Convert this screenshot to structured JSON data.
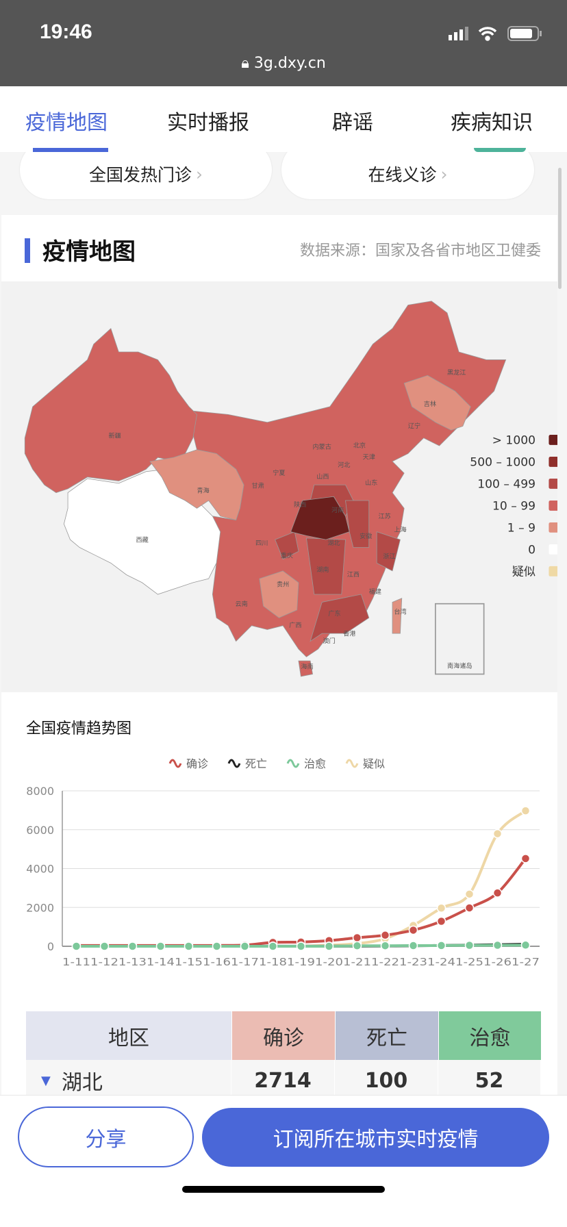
{
  "status": {
    "time": "19:46",
    "url": "3g.dxy.cn",
    "icons": [
      "signal-icon",
      "wifi-icon",
      "battery-icon",
      "lock-icon"
    ]
  },
  "tabs": [
    {
      "label": "疫情地图",
      "active": true
    },
    {
      "label": "实时播报"
    },
    {
      "label": "辟谣"
    },
    {
      "label": "疾病知识"
    }
  ],
  "quick": [
    {
      "label": "全国发热门诊",
      "chevron": "›"
    },
    {
      "label": "在线义诊",
      "chevron": "›"
    }
  ],
  "map_card": {
    "title": "疫情地图",
    "source": "数据来源：国家及各省市地区卫健委"
  },
  "map": {
    "legend": [
      {
        "label": "> 1000",
        "color": "#6b1f1d"
      },
      {
        "label": "500 – 1000",
        "color": "#8f2f2b"
      },
      {
        "label": "100 – 499",
        "color": "#b34a47"
      },
      {
        "label": "10 – 99",
        "color": "#d0635f"
      },
      {
        "label": "1 – 9",
        "color": "#e0907f"
      },
      {
        "label": "0",
        "color": "#ffffff"
      },
      {
        "label": "疑似",
        "color": "#efd9a5"
      }
    ],
    "provinces": [
      "新疆",
      "西藏",
      "青海",
      "甘肃",
      "内蒙古",
      "黑龙江",
      "吉林",
      "辽宁",
      "北京",
      "天津",
      "河北",
      "宁夏",
      "山西",
      "山东",
      "陕西",
      "河南",
      "江苏",
      "上海",
      "湖北",
      "安徽",
      "四川",
      "重庆",
      "浙江",
      "湖南",
      "江西",
      "贵州",
      "福建",
      "云南",
      "广东",
      "台湾",
      "广西",
      "香港",
      "澳门",
      "海南"
    ],
    "inset": "南海诸岛"
  },
  "chart_data": {
    "type": "line",
    "title": "全国疫情趋势图",
    "x": [
      "1-11",
      "1-12",
      "1-13",
      "1-14",
      "1-15",
      "1-16",
      "1-17",
      "1-18",
      "1-19",
      "1-20",
      "1-21",
      "1-22",
      "1-23",
      "1-24",
      "1-25",
      "1-26",
      "1-27"
    ],
    "ylim": [
      0,
      8000
    ],
    "yticks": [
      "0",
      "2000",
      "4000",
      "6000",
      "8000"
    ],
    "grid": true,
    "legend_position": "top",
    "series": [
      {
        "name": "确诊",
        "color": "#c9504a",
        "values": [
          41,
          41,
          41,
          41,
          41,
          41,
          62,
          198,
          218,
          291,
          440,
          571,
          830,
          1287,
          1975,
          2744,
          4515
        ]
      },
      {
        "name": "死亡",
        "color": "#222222",
        "values": [
          1,
          1,
          1,
          1,
          2,
          2,
          2,
          3,
          4,
          6,
          9,
          17,
          25,
          41,
          56,
          80,
          106
        ]
      },
      {
        "name": "治愈",
        "color": "#7cc89a",
        "values": [
          0,
          0,
          0,
          0,
          0,
          0,
          0,
          0,
          0,
          0,
          25,
          28,
          34,
          38,
          49,
          51,
          60
        ]
      },
      {
        "name": "疑似",
        "color": "#eed7a6",
        "values": [
          null,
          null,
          null,
          null,
          null,
          null,
          null,
          null,
          0,
          54,
          140,
          393,
          1072,
          1965,
          2684,
          5794,
          6973
        ]
      }
    ]
  },
  "table": {
    "headers": [
      "地区",
      "确诊",
      "死亡",
      "治愈"
    ],
    "header_colors": [
      "#e3e5f0",
      "#ebbcb3",
      "#b8bfd4",
      "#80ca9b"
    ],
    "rows": [
      {
        "region": "湖北",
        "confirmed": "2714",
        "dead": "100",
        "cured": "52"
      }
    ]
  },
  "actions": {
    "share": "分享",
    "subscribe": "订阅所在城市实时疫情"
  }
}
